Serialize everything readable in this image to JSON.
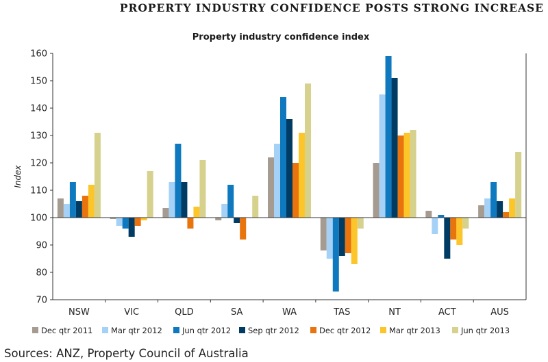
{
  "page": {
    "headline": "PROPERTY INDUSTRY CONFIDENCE POSTS STRONG INCREASE",
    "source": "Sources: ANZ, Property Council of Australia"
  },
  "chart_data": {
    "type": "bar",
    "title": "Property industry confidence index",
    "xlabel": "",
    "ylabel": "Index",
    "ylim": [
      70,
      160
    ],
    "yticks": [
      70,
      80,
      90,
      100,
      110,
      120,
      130,
      140,
      150,
      160
    ],
    "baseline": 100,
    "grid": false,
    "legend_position": "bottom",
    "categories": [
      "NSW",
      "VIC",
      "QLD",
      "SA",
      "WA",
      "TAS",
      "NT",
      "ACT",
      "AUS"
    ],
    "series": [
      {
        "name": "Dec qtr 2011",
        "color": "#a69b91",
        "values": [
          107,
          99.5,
          103.5,
          99,
          122,
          88,
          120,
          102.5,
          104.5
        ]
      },
      {
        "name": "Mar qtr 2012",
        "color": "#a6d1f7",
        "values": [
          105,
          97,
          113,
          105,
          127,
          85,
          145,
          94,
          107
        ]
      },
      {
        "name": "Jun qtr 2012",
        "color": "#0e79be",
        "values": [
          113,
          96,
          127,
          112,
          144,
          73,
          159,
          101,
          113
        ]
      },
      {
        "name": "Sep qtr 2012",
        "color": "#003b63",
        "values": [
          106,
          93,
          113,
          98,
          136,
          86,
          151,
          85,
          106
        ]
      },
      {
        "name": "Dec qtr 2012",
        "color": "#e9730d",
        "values": [
          108,
          97,
          96,
          92,
          120,
          87,
          130,
          92,
          102
        ]
      },
      {
        "name": "Mar qtr 2013",
        "color": "#fcc62b",
        "values": [
          112,
          99,
          104,
          100,
          131,
          83,
          131,
          90,
          107
        ]
      },
      {
        "name": "Jun qtr 2013",
        "color": "#d6d18d",
        "values": [
          131,
          117,
          121,
          108,
          149,
          96,
          132,
          96,
          124
        ]
      }
    ]
  }
}
